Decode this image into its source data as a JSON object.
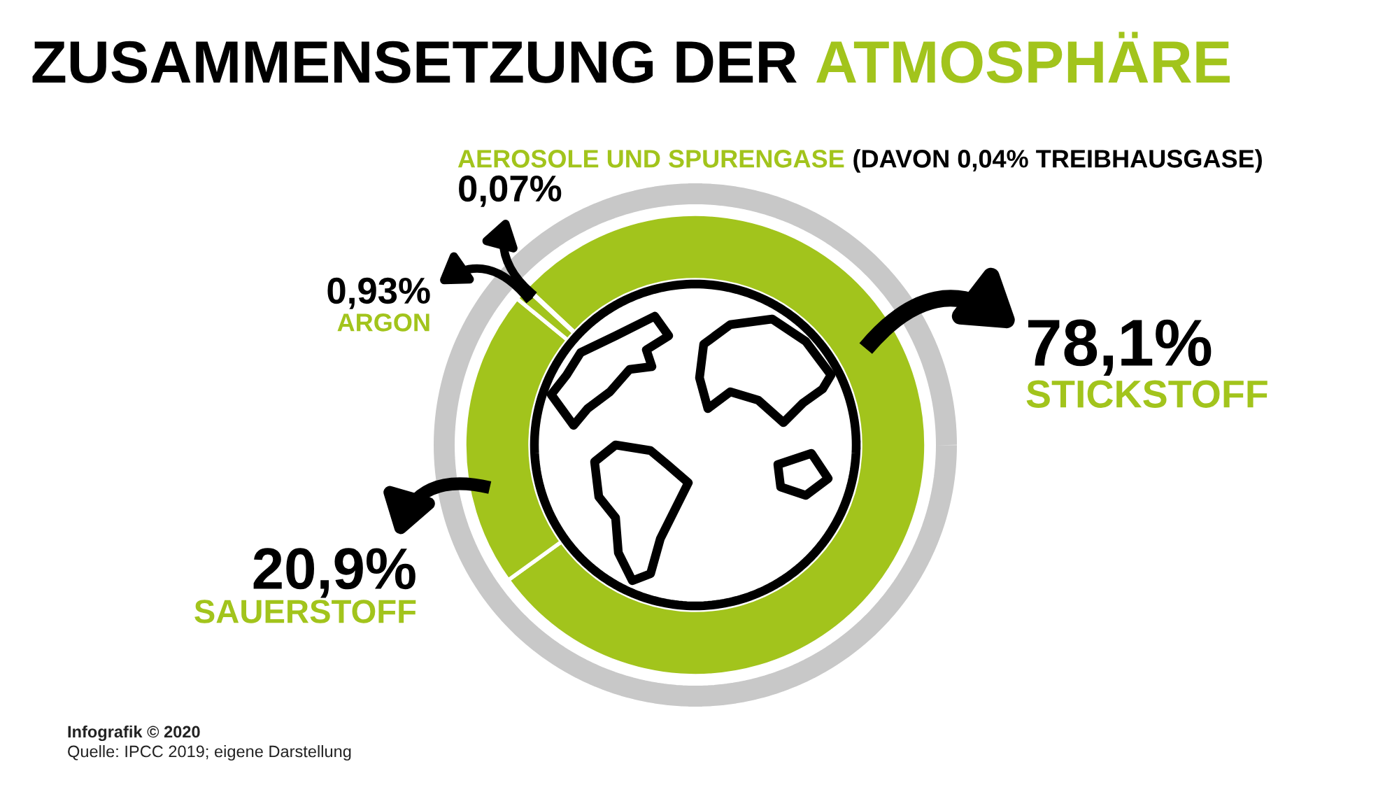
{
  "chart_data": {
    "type": "donut",
    "title": "ZUSAMMENSETZUNG DER ATMOSPHÄRE",
    "categories": [
      "STICKSTOFF",
      "SAUERSTOFF",
      "ARGON",
      "AEROSOLE UND SPURENGASE"
    ],
    "values": [
      78.1,
      20.9,
      0.93,
      0.07
    ],
    "value_labels": [
      "78,1%",
      "20,9%",
      "0,93%",
      "0,07%"
    ],
    "colors": [
      "#a2c41c",
      "#a2c41c",
      "#a2c41c",
      "#a2c41c"
    ],
    "annotations": [
      "(DAVON 0,04% TREIBHAUSGASE)",
      "Infografik © 2020",
      "Quelle: IPCC 2019; eigene Darstellung"
    ]
  }
}
